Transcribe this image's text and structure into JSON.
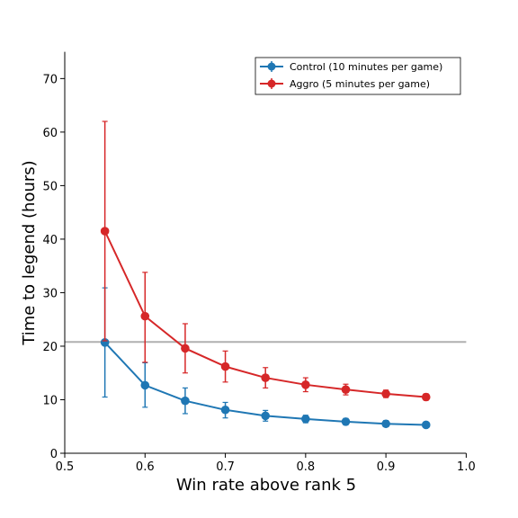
{
  "chart_data": {
    "type": "line",
    "xlabel": "Win rate above rank 5",
    "ylabel": "Time to legend (hours)",
    "xlim": [
      0.5,
      1.0
    ],
    "ylim": [
      0,
      75
    ],
    "x_ticks": [
      0.5,
      0.6,
      0.7,
      0.8,
      0.9,
      1.0
    ],
    "x_tick_labels": [
      "0.5",
      "0.6",
      "0.7",
      "0.8",
      "0.9",
      "1.0"
    ],
    "y_ticks": [
      0,
      10,
      20,
      30,
      40,
      50,
      60,
      70
    ],
    "y_tick_labels": [
      "0",
      "10",
      "20",
      "30",
      "40",
      "50",
      "60",
      "70"
    ],
    "grid": false,
    "legend_position": "top-right",
    "reference_line": {
      "y": 20.8,
      "color": "#b0b0b0"
    },
    "x": [
      0.55,
      0.6,
      0.65,
      0.7,
      0.75,
      0.8,
      0.85,
      0.9,
      0.95
    ],
    "series": [
      {
        "name": "Control (10 minutes per game)",
        "color": "#1f77b4",
        "values": [
          20.7,
          12.7,
          9.8,
          8.1,
          7.0,
          6.4,
          5.9,
          5.5,
          5.3
        ],
        "error_low": [
          10.5,
          8.6,
          7.4,
          6.6,
          6.0,
          5.7,
          5.3,
          5.0,
          4.8
        ],
        "error_high": [
          30.9,
          16.9,
          12.2,
          9.5,
          8.0,
          7.1,
          6.5,
          6.1,
          5.8
        ]
      },
      {
        "name": "Aggro (5 minutes per game)",
        "color": "#d62728",
        "values": [
          41.5,
          25.6,
          19.6,
          16.2,
          14.1,
          12.8,
          11.9,
          11.1,
          10.5
        ],
        "error_low": [
          21.0,
          17.0,
          15.0,
          13.3,
          12.2,
          11.5,
          10.9,
          10.4,
          9.9
        ],
        "error_high": [
          62.0,
          33.8,
          24.2,
          19.1,
          16.0,
          14.1,
          12.9,
          11.8,
          11.1
        ]
      }
    ]
  }
}
